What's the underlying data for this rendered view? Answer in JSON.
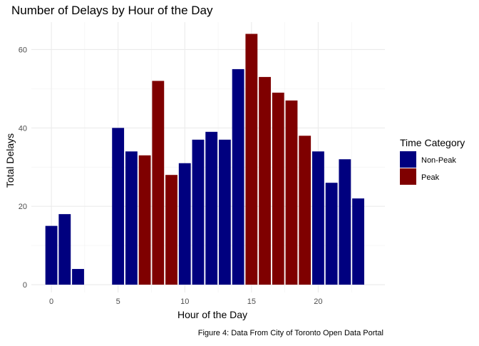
{
  "chart_data": {
    "type": "bar",
    "title": "Number of Delays by Hour of the Day",
    "xlabel": "Hour of the Day",
    "ylabel": "Total Delays",
    "caption": "Figure 4: Data From City of Toronto Open Data Portal",
    "xlim": [
      -1.5,
      25
    ],
    "ylim": [
      -2,
      67
    ],
    "x_ticks": [
      0,
      5,
      10,
      15,
      20
    ],
    "y_ticks": [
      0,
      20,
      40,
      60
    ],
    "grid": true,
    "legend": {
      "title": "Time Category",
      "position": "right",
      "entries": [
        {
          "label": "Non-Peak",
          "color": "#00007F"
        },
        {
          "label": "Peak",
          "color": "#7F0000"
        }
      ]
    },
    "bars": [
      {
        "hour": 0,
        "value": 15,
        "category": "Non-Peak"
      },
      {
        "hour": 1,
        "value": 18,
        "category": "Non-Peak"
      },
      {
        "hour": 2,
        "value": 4,
        "category": "Non-Peak"
      },
      {
        "hour": 5,
        "value": 40,
        "category": "Non-Peak"
      },
      {
        "hour": 6,
        "value": 34,
        "category": "Non-Peak"
      },
      {
        "hour": 7,
        "value": 33,
        "category": "Peak"
      },
      {
        "hour": 8,
        "value": 52,
        "category": "Peak"
      },
      {
        "hour": 9,
        "value": 28,
        "category": "Peak"
      },
      {
        "hour": 10,
        "value": 31,
        "category": "Non-Peak"
      },
      {
        "hour": 11,
        "value": 37,
        "category": "Non-Peak"
      },
      {
        "hour": 12,
        "value": 39,
        "category": "Non-Peak"
      },
      {
        "hour": 13,
        "value": 37,
        "category": "Non-Peak"
      },
      {
        "hour": 14,
        "value": 55,
        "category": "Non-Peak"
      },
      {
        "hour": 15,
        "value": 64,
        "category": "Peak"
      },
      {
        "hour": 16,
        "value": 53,
        "category": "Peak"
      },
      {
        "hour": 17,
        "value": 49,
        "category": "Peak"
      },
      {
        "hour": 18,
        "value": 47,
        "category": "Peak"
      },
      {
        "hour": 19,
        "value": 38,
        "category": "Peak"
      },
      {
        "hour": 20,
        "value": 34,
        "category": "Non-Peak"
      },
      {
        "hour": 21,
        "value": 26,
        "category": "Non-Peak"
      },
      {
        "hour": 22,
        "value": 32,
        "category": "Non-Peak"
      },
      {
        "hour": 23,
        "value": 22,
        "category": "Non-Peak"
      }
    ]
  }
}
